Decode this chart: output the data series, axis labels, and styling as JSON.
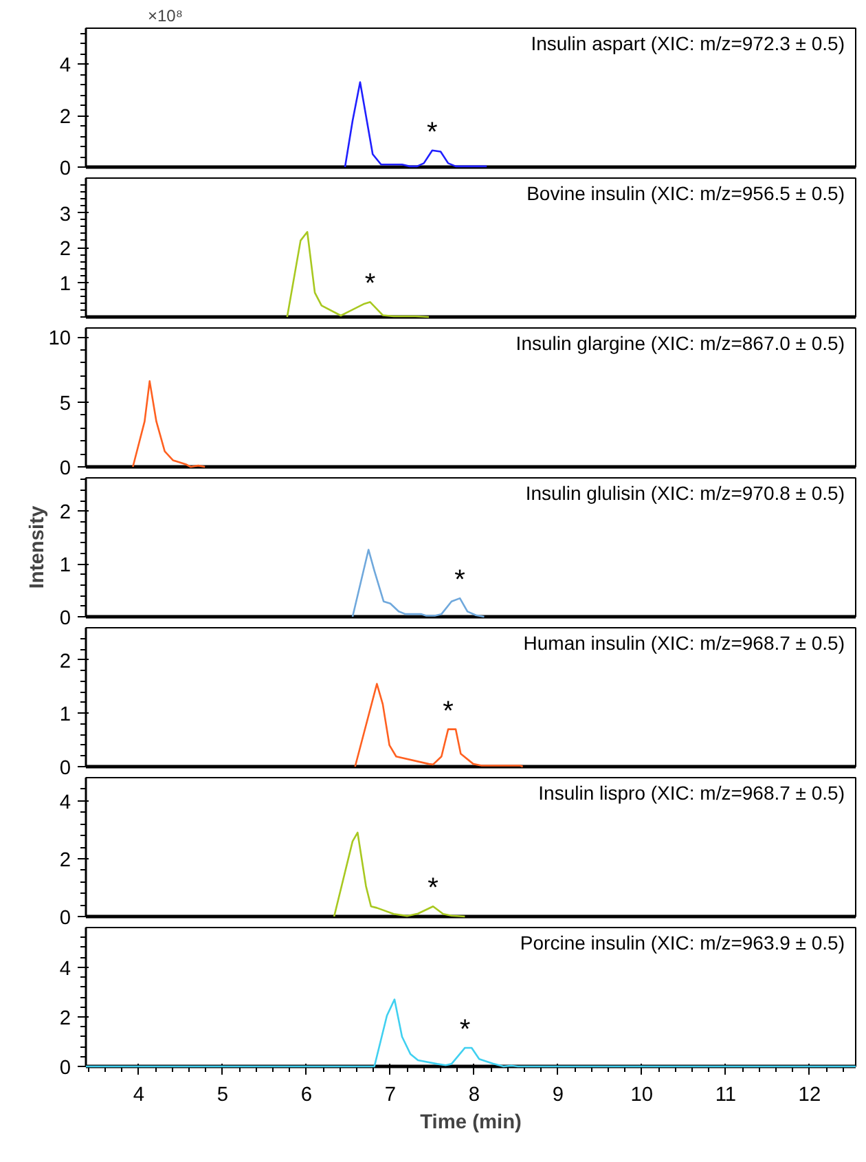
{
  "chart_data": [
    {
      "type": "line",
      "xlim": [
        3.37,
        12.55
      ],
      "ylim": [
        0,
        5.4
      ],
      "yticks": [
        0,
        2,
        4
      ],
      "tick_labels": "y",
      "grid": false,
      "annotations": [
        "×10⁸",
        {
          "text": "*",
          "x": 7.5,
          "y": 0.65
        }
      ],
      "series": [
        {
          "name": "Insulin aspart (XIC: m/z=972.3 ± 0.5)",
          "color": "#2020ff",
          "x": [
            6.46,
            6.55,
            6.64,
            6.79,
            6.89,
            7.14,
            7.23,
            7.32,
            7.4,
            7.5,
            7.6,
            7.69,
            7.78,
            8.15
          ],
          "values": [
            0,
            1.8,
            3.3,
            0.5,
            0.1,
            0.1,
            0.03,
            0.03,
            0.15,
            0.65,
            0.6,
            0.15,
            0.03,
            0.03
          ]
        }
      ]
    },
    {
      "type": "line",
      "xlim": [
        3.37,
        12.55
      ],
      "ylim": [
        0,
        4.0
      ],
      "yticks": [
        1,
        2,
        3
      ],
      "tick_labels": "y",
      "grid": false,
      "annotations": [
        {
          "text": "*",
          "x": 6.76,
          "y": 0.43
        }
      ],
      "series": [
        {
          "name": "Bovine insulin (XIC: m/z=956.5 ± 0.5)",
          "color": "#a8c820",
          "x": [
            5.77,
            5.93,
            6.01,
            6.1,
            6.18,
            6.41,
            6.68,
            6.76,
            6.91,
            7.04,
            7.3,
            7.46
          ],
          "values": [
            0,
            2.2,
            2.45,
            0.7,
            0.33,
            0.04,
            0.37,
            0.43,
            0.05,
            0.02,
            0.02,
            0
          ]
        }
      ]
    },
    {
      "type": "line",
      "xlim": [
        3.37,
        12.55
      ],
      "ylim": [
        0,
        10.7
      ],
      "yticks": [
        0,
        5,
        10
      ],
      "tick_labels": "y",
      "grid": false,
      "series": [
        {
          "name": "Insulin glargine (XIC: m/z=867.0 ± 0.5)",
          "color": "#ff6020",
          "x": [
            3.93,
            4.07,
            4.13,
            4.21,
            4.31,
            4.41,
            4.56,
            4.62,
            4.71,
            4.79
          ],
          "values": [
            0,
            3.5,
            6.6,
            3.5,
            1.2,
            0.5,
            0.2,
            0,
            0.1,
            0
          ]
        }
      ]
    },
    {
      "type": "line",
      "xlim": [
        3.37,
        12.55
      ],
      "ylim": [
        0,
        2.63
      ],
      "yticks": [
        0,
        1,
        2
      ],
      "tick_labels": "y",
      "grid": false,
      "ylabel": "Intensity",
      "annotations": [
        {
          "text": "*",
          "x": 7.83,
          "y": 0.35
        }
      ],
      "series": [
        {
          "name": "Insulin glulisin (XIC: m/z=970.8 ± 0.5)",
          "color": "#6fa8dc",
          "x": [
            6.55,
            6.74,
            6.81,
            6.92,
            7.0,
            7.1,
            7.18,
            7.37,
            7.43,
            7.53,
            7.61,
            7.73,
            7.83,
            7.92,
            8.02,
            8.12
          ],
          "values": [
            0,
            1.27,
            0.87,
            0.29,
            0.25,
            0.1,
            0.05,
            0.05,
            0.02,
            0.02,
            0.05,
            0.29,
            0.35,
            0.1,
            0.03,
            0
          ]
        }
      ]
    },
    {
      "type": "line",
      "xlim": [
        3.37,
        12.55
      ],
      "ylim": [
        0,
        2.6
      ],
      "yticks": [
        0,
        1,
        2
      ],
      "tick_labels": "y",
      "grid": false,
      "annotations": [
        {
          "text": "*",
          "x": 7.69,
          "y": 0.7
        }
      ],
      "series": [
        {
          "name": "Human insulin (XIC: m/z=968.7 ± 0.5)",
          "color": "#ff6020",
          "x": [
            6.58,
            6.84,
            6.91,
            6.99,
            7.07,
            7.46,
            7.51,
            7.61,
            7.69,
            7.78,
            7.84,
            7.99,
            8.09,
            8.55,
            8.58
          ],
          "values": [
            0,
            1.55,
            1.17,
            0.4,
            0.19,
            0.05,
            0.04,
            0.19,
            0.7,
            0.7,
            0.24,
            0.05,
            0.02,
            0.02,
            0
          ]
        }
      ]
    },
    {
      "type": "line",
      "xlim": [
        3.37,
        12.55
      ],
      "ylim": [
        0,
        4.8
      ],
      "yticks": [
        0,
        2,
        4
      ],
      "tick_labels": "y",
      "grid": false,
      "annotations": [
        {
          "text": "*",
          "x": 7.51,
          "y": 0.35
        }
      ],
      "series": [
        {
          "name": "Insulin lispro (XIC: m/z=968.7 ± 0.5)",
          "color": "#a8c820",
          "x": [
            6.33,
            6.55,
            6.61,
            6.71,
            6.77,
            6.84,
            7.04,
            7.2,
            7.33,
            7.51,
            7.63,
            7.73,
            7.89
          ],
          "values": [
            0,
            2.6,
            2.9,
            1.05,
            0.35,
            0.3,
            0.09,
            0.02,
            0.1,
            0.35,
            0.09,
            0.03,
            0
          ]
        }
      ]
    },
    {
      "type": "line",
      "xlim": [
        3.37,
        12.55
      ],
      "ylim": [
        0,
        5.6
      ],
      "yticks": [
        0,
        2,
        4
      ],
      "xticks": [
        4,
        5,
        6,
        7,
        8,
        9,
        10,
        11,
        12
      ],
      "grid": false,
      "xlabel": "Time (min)",
      "annotations": [
        {
          "text": "*",
          "x": 7.89,
          "y": 0.75
        }
      ],
      "series": [
        {
          "name": "Porcine insulin (XIC: m/z=963.9 ± 0.5)",
          "color": "#40d0f0",
          "x": [
            3.37,
            6.81,
            6.96,
            7.05,
            7.14,
            7.24,
            7.33,
            7.56,
            7.66,
            7.73,
            7.89,
            7.97,
            8.06,
            8.22,
            8.35,
            8.45,
            8.52,
            12.55
          ],
          "values": [
            0,
            0,
            2.05,
            2.7,
            1.2,
            0.5,
            0.25,
            0.1,
            0.05,
            0.1,
            0.75,
            0.75,
            0.3,
            0.12,
            0,
            0.03,
            0,
            0
          ]
        }
      ]
    }
  ]
}
